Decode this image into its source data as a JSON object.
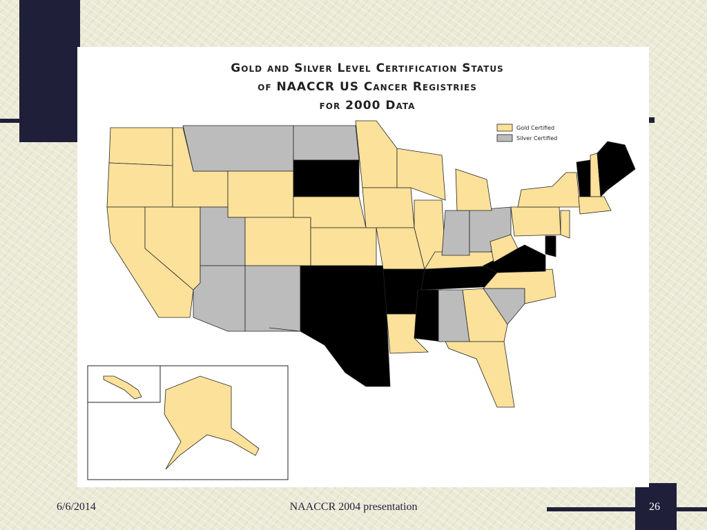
{
  "map": {
    "title": [
      "Gold and Silver Level Certification Status",
      "of NAACCR US Cancer Registries",
      "for 2000 Data"
    ],
    "legend": [
      "Gold Certified",
      "Silver Certified"
    ]
  },
  "footer": {
    "date": "6/6/2014",
    "text": "NAACCR 2004 presentation",
    "page": "26"
  }
}
